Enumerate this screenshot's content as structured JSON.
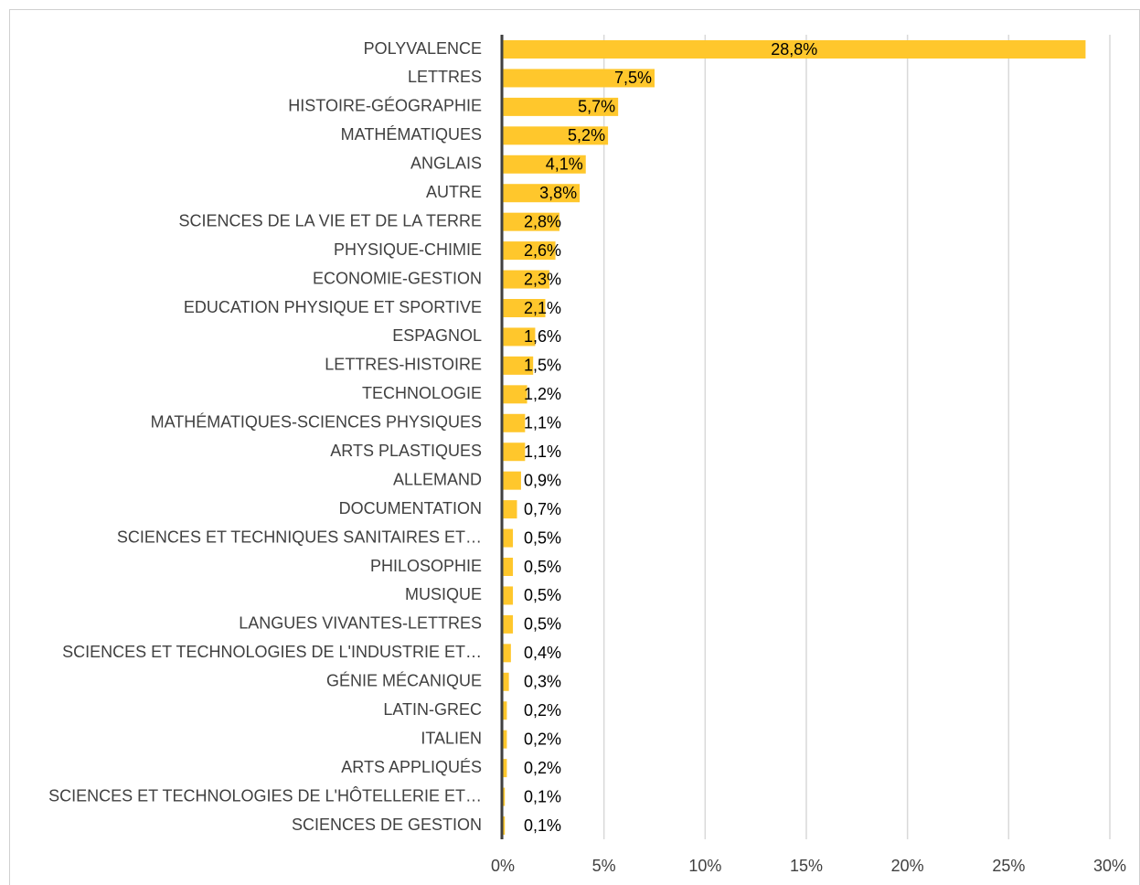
{
  "chart_data": {
    "type": "bar",
    "orientation": "horizontal",
    "color": "#FFC72C",
    "grid": true,
    "categories": [
      "POLYVALENCE",
      "LETTRES",
      "HISTOIRE-GÉOGRAPHIE",
      "MATHÉMATIQUES",
      "ANGLAIS",
      "AUTRE",
      "SCIENCES DE LA VIE ET DE LA TERRE",
      "PHYSIQUE-CHIMIE",
      "ECONOMIE-GESTION",
      "EDUCATION PHYSIQUE ET SPORTIVE",
      "ESPAGNOL",
      "LETTRES-HISTOIRE",
      "TECHNOLOGIE",
      "MATHÉMATIQUES-SCIENCES PHYSIQUES",
      "ARTS PLASTIQUES",
      "ALLEMAND",
      "DOCUMENTATION",
      "SCIENCES ET TECHNIQUES SANITAIRES ET…",
      "PHILOSOPHIE",
      "MUSIQUE",
      "LANGUES VIVANTES-LETTRES",
      "SCIENCES ET TECHNOLOGIES DE L'INDUSTRIE ET…",
      "GÉNIE MÉCANIQUE",
      "LATIN-GREC",
      "ITALIEN",
      "ARTS APPLIQUÉS",
      "SCIENCES ET TECHNOLOGIES DE L'HÔTELLERIE ET…",
      "SCIENCES DE GESTION"
    ],
    "values": [
      28.8,
      7.5,
      5.7,
      5.2,
      4.1,
      3.8,
      2.8,
      2.6,
      2.3,
      2.1,
      1.6,
      1.5,
      1.2,
      1.1,
      1.1,
      0.9,
      0.7,
      0.5,
      0.5,
      0.5,
      0.5,
      0.4,
      0.3,
      0.2,
      0.2,
      0.2,
      0.1,
      0.1
    ],
    "value_labels": [
      "28,8%",
      "7,5%",
      "5,7%",
      "5,2%",
      "4,1%",
      "3,8%",
      "2,8%",
      "2,6%",
      "2,3%",
      "2,1%",
      "1,6%",
      "1,5%",
      "1,2%",
      "1,1%",
      "1,1%",
      "0,9%",
      "0,7%",
      "0,5%",
      "0,5%",
      "0,5%",
      "0,5%",
      "0,4%",
      "0,3%",
      "0,2%",
      "0,2%",
      "0,2%",
      "0,1%",
      "0,1%"
    ],
    "xlim": [
      0,
      30
    ],
    "xticks": [
      {
        "value": 0,
        "label": "0%"
      },
      {
        "value": 5,
        "label": "5%"
      },
      {
        "value": 10,
        "label": "10%"
      },
      {
        "value": 15,
        "label": "15%"
      },
      {
        "value": 20,
        "label": "20%"
      },
      {
        "value": 25,
        "label": "25%"
      },
      {
        "value": 30,
        "label": "30%"
      }
    ]
  }
}
